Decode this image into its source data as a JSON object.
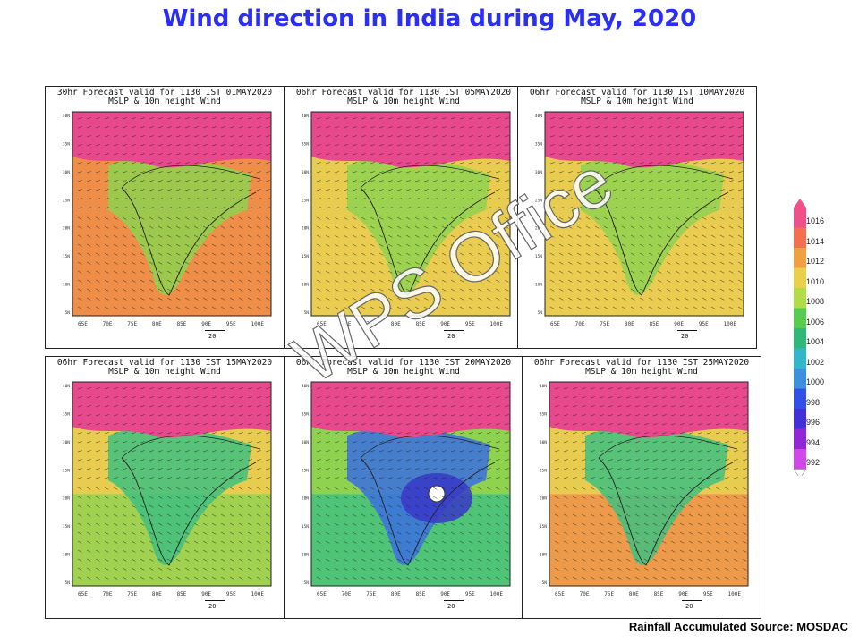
{
  "title": "Wind direction in India during May, 2020",
  "panels": [
    {
      "line1": "30hr Forecast valid for 1130 IST 01MAY2020",
      "line2": "MSLP & 10m height Wind",
      "scheme": "a"
    },
    {
      "line1": "06hr Forecast valid for 1130 IST 05MAY2020",
      "line2": "MSLP & 10m height Wind",
      "scheme": "b"
    },
    {
      "line1": "06hr Forecast valid for 1130 IST 10MAY2020",
      "line2": "MSLP & 10m height Wind",
      "scheme": "c"
    },
    {
      "line1": "06hr Forecast valid for 1130 IST 15MAY2020",
      "line2": "MSLP & 10m height Wind",
      "scheme": "d"
    },
    {
      "line1": "06hr Forecast valid for 1130 IST 20MAY2020",
      "line2": "MSLP & 10m height Wind",
      "scheme": "e"
    },
    {
      "line1": "06hr Forecast valid for 1130 IST 25MAY2020",
      "line2": "MSLP & 10m height Wind",
      "scheme": "f"
    }
  ],
  "ylabels": [
    "40N",
    "35N",
    "30N",
    "25N",
    "20N",
    "15N",
    "10N",
    "5N"
  ],
  "xlabels": [
    "65E",
    "70E",
    "75E",
    "80E",
    "85E",
    "90E",
    "95E",
    "100E"
  ],
  "reference_vector": "20",
  "colorbar": {
    "labels": [
      "1016",
      "1014",
      "1012",
      "1010",
      "1008",
      "1006",
      "1004",
      "1002",
      "1000",
      "998",
      "996",
      "994",
      "992"
    ],
    "colors": [
      "#f0508a",
      "#f27050",
      "#f0a040",
      "#e8d048",
      "#b0dc48",
      "#58cc50",
      "#30b878",
      "#30b8c8",
      "#3c90e0",
      "#3050e8",
      "#4430d8",
      "#9028d8",
      "#d048e8"
    ]
  },
  "map_colors": {
    "high": "#e8488c",
    "orange": "#ee8e48",
    "yellow": "#e8cc50",
    "green": "#8ed250",
    "teal": "#40c080",
    "blue": "#3a70e0",
    "deep": "#3838c8"
  },
  "source": "Rainfall Accumulated Source: MOSDAC",
  "watermark": "WPS Office"
}
